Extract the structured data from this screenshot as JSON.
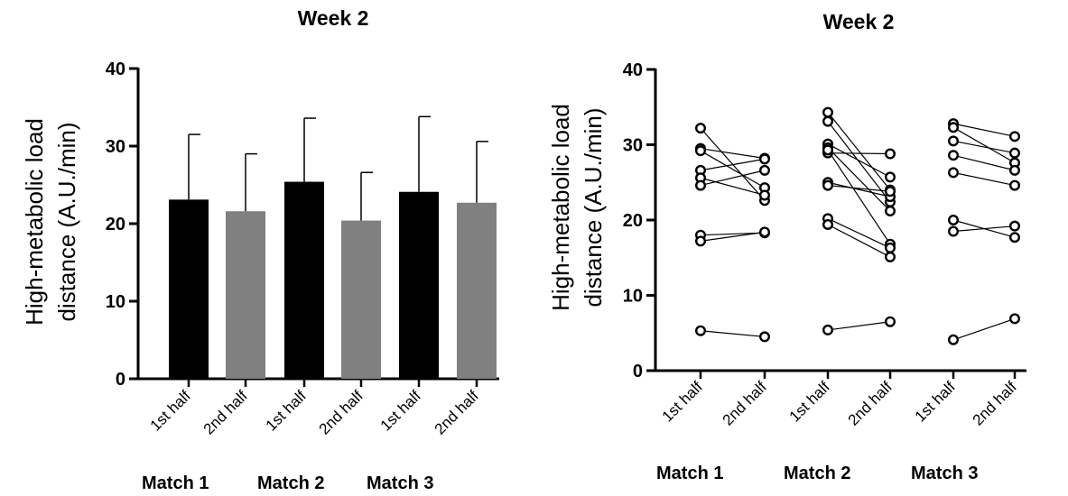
{
  "chart_data": [
    {
      "type": "bar",
      "title": "Week 2",
      "ylabel": "High-metabolic load distance (A.U./min)",
      "ylabel_lines": [
        "High-metabolic load",
        "distance (A.U./min)"
      ],
      "ylim": [
        0,
        40
      ],
      "yticks": [
        0,
        10,
        20,
        30,
        40
      ],
      "categories": [
        "1st half",
        "2nd half",
        "1st half",
        "2nd half",
        "1st half",
        "2nd half"
      ],
      "groups": [
        "Match 1",
        "Match 2",
        "Match 3"
      ],
      "values": [
        23.1,
        21.6,
        25.4,
        20.4,
        24.1,
        22.7
      ],
      "error_upper": [
        31.5,
        29.0,
        33.6,
        26.6,
        33.8,
        30.6
      ],
      "colors": [
        "#000000",
        "#808080",
        "#000000",
        "#808080",
        "#000000",
        "#808080"
      ],
      "grid": false
    },
    {
      "type": "scatter",
      "title": "Week 2",
      "ylabel": "High-metabolic load distance (A.U./min)",
      "ylabel_lines": [
        "High-metabolic load",
        "distance (A.U./min)"
      ],
      "ylim": [
        0,
        40
      ],
      "yticks": [
        0,
        10,
        20,
        30,
        40
      ],
      "categories": [
        "1st half",
        "2nd half",
        "1st half",
        "2nd half",
        "1st half",
        "2nd half"
      ],
      "groups": [
        "Match 1",
        "Match 2",
        "Match 3"
      ],
      "grid": false,
      "paired_points": [
        {
          "match": "Match 1",
          "pairs": [
            [
              32.2,
              22.6
            ],
            [
              29.5,
              28.2
            ],
            [
              29.2,
              24.3
            ],
            [
              26.6,
              28.1
            ],
            [
              25.6,
              23.3
            ],
            [
              24.6,
              26.6
            ],
            [
              18.0,
              18.3
            ],
            [
              17.2,
              18.4
            ],
            [
              5.3,
              4.5
            ]
          ]
        },
        {
          "match": "Match 2",
          "pairs": [
            [
              34.3,
              24.0
            ],
            [
              33.1,
              22.4
            ],
            [
              30.1,
              25.7
            ],
            [
              29.6,
              21.2
            ],
            [
              28.9,
              28.8
            ],
            [
              29.3,
              16.8
            ],
            [
              25.0,
              23.1
            ],
            [
              24.6,
              23.8
            ],
            [
              20.2,
              16.3
            ],
            [
              19.4,
              15.1
            ],
            [
              5.4,
              6.5
            ]
          ]
        },
        {
          "match": "Match 3",
          "pairs": [
            [
              32.8,
              31.1
            ],
            [
              32.3,
              27.6
            ],
            [
              30.5,
              28.9
            ],
            [
              28.6,
              26.6
            ],
            [
              26.3,
              24.6
            ],
            [
              20.0,
              17.7
            ],
            [
              18.5,
              19.2
            ],
            [
              4.1,
              6.9
            ]
          ]
        }
      ]
    }
  ]
}
